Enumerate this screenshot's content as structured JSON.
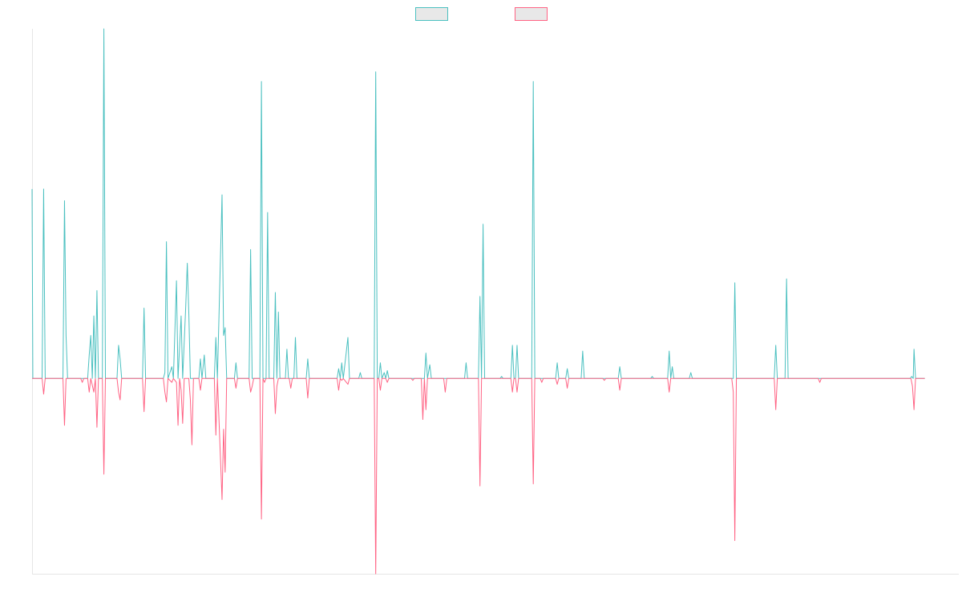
{
  "chart_data": {
    "type": "line",
    "title": "",
    "xlabel": "",
    "ylabel": "",
    "x_range": [
      0,
      1200
    ],
    "ylim": [
      -1.0,
      1.79
    ],
    "grid": false,
    "legend": {
      "placement": "top-center"
    },
    "series": [
      {
        "color": "#4bc0c0",
        "fill": "#e8e8e8",
        "values": [
          [
            0,
            0.97
          ],
          [
            1,
            0
          ],
          [
            13,
            0
          ],
          [
            15,
            0.97
          ],
          [
            17,
            0
          ],
          [
            40,
            0
          ],
          [
            42,
            0.91
          ],
          [
            44,
            0.22
          ],
          [
            46,
            0
          ],
          [
            72,
            0
          ],
          [
            74,
            0.12
          ],
          [
            76,
            0.22
          ],
          [
            78,
            0
          ],
          [
            80,
            0.32
          ],
          [
            82,
            0
          ],
          [
            84,
            0.45
          ],
          [
            86,
            0
          ],
          [
            91,
            0
          ],
          [
            93,
            1.79
          ],
          [
            95,
            0
          ],
          [
            110,
            0
          ],
          [
            112,
            0.17
          ],
          [
            114,
            0.1
          ],
          [
            116,
            0
          ],
          [
            143,
            0
          ],
          [
            145,
            0.36
          ],
          [
            147,
            0
          ],
          [
            170,
            0
          ],
          [
            172,
            0.03
          ],
          [
            174,
            0.7
          ],
          [
            176,
            0
          ],
          [
            181,
            0.06
          ],
          [
            183,
            0
          ],
          [
            187,
            0.5
          ],
          [
            189,
            0
          ],
          [
            193,
            0.32
          ],
          [
            195,
            0
          ],
          [
            199,
            0.37
          ],
          [
            201,
            0.59
          ],
          [
            203,
            0.33
          ],
          [
            205,
            0
          ],
          [
            216,
            0
          ],
          [
            218,
            0.1
          ],
          [
            220,
            0
          ],
          [
            223,
            0.12
          ],
          [
            225,
            0
          ],
          [
            236,
            0
          ],
          [
            238,
            0.21
          ],
          [
            240,
            0
          ],
          [
            246,
            0.94
          ],
          [
            248,
            0.22
          ],
          [
            250,
            0.26
          ],
          [
            252,
            0
          ],
          [
            262,
            0
          ],
          [
            264,
            0.08
          ],
          [
            266,
            0
          ],
          [
            281,
            0
          ],
          [
            283,
            0.66
          ],
          [
            285,
            0
          ],
          [
            295,
            0
          ],
          [
            297,
            1.52
          ],
          [
            299,
            0
          ],
          [
            303,
            0
          ],
          [
            305,
            0.85
          ],
          [
            307,
            0
          ],
          [
            313,
            0
          ],
          [
            315,
            0.44
          ],
          [
            317,
            0
          ],
          [
            319,
            0.34
          ],
          [
            321,
            0
          ],
          [
            328,
            0
          ],
          [
            330,
            0.15
          ],
          [
            332,
            0
          ],
          [
            339,
            0
          ],
          [
            341,
            0.21
          ],
          [
            343,
            0
          ],
          [
            355,
            0
          ],
          [
            357,
            0.1
          ],
          [
            359,
            0
          ],
          [
            395,
            0
          ],
          [
            397,
            0.05
          ],
          [
            399,
            0
          ],
          [
            401,
            0.08
          ],
          [
            403,
            0
          ],
          [
            409,
            0.21
          ],
          [
            411,
            0
          ],
          [
            423,
            0
          ],
          [
            425,
            0.03
          ],
          [
            427,
            0
          ],
          [
            443,
            0
          ],
          [
            445,
            1.57
          ],
          [
            447,
            0
          ],
          [
            449,
            0
          ],
          [
            451,
            0.08
          ],
          [
            453,
            0
          ],
          [
            456,
            0.03
          ],
          [
            458,
            0
          ],
          [
            460,
            0.04
          ],
          [
            462,
            0
          ],
          [
            508,
            0
          ],
          [
            510,
            0.13
          ],
          [
            512,
            0
          ],
          [
            515,
            0.07
          ],
          [
            517,
            0
          ],
          [
            560,
            0
          ],
          [
            562,
            0.08
          ],
          [
            564,
            0
          ],
          [
            578,
            0
          ],
          [
            580,
            0.42
          ],
          [
            582,
            0
          ],
          [
            584,
            0.79
          ],
          [
            586,
            0
          ],
          [
            606,
            0
          ],
          [
            608,
            0.01
          ],
          [
            610,
            0
          ],
          [
            620,
            0
          ],
          [
            622,
            0.17
          ],
          [
            624,
            0
          ],
          [
            626,
            0
          ],
          [
            628,
            0.17
          ],
          [
            630,
            0
          ],
          [
            647,
            0
          ],
          [
            649,
            1.52
          ],
          [
            651,
            0
          ],
          [
            678,
            0
          ],
          [
            680,
            0.08
          ],
          [
            682,
            0
          ],
          [
            691,
            0
          ],
          [
            693,
            0.05
          ],
          [
            695,
            0
          ],
          [
            711,
            0
          ],
          [
            713,
            0.14
          ],
          [
            715,
            0
          ],
          [
            759,
            0
          ],
          [
            761,
            0.06
          ],
          [
            763,
            0
          ],
          [
            801,
            0
          ],
          [
            803,
            0.01
          ],
          [
            805,
            0
          ],
          [
            823,
            0
          ],
          [
            825,
            0.14
          ],
          [
            827,
            0
          ],
          [
            829,
            0.06
          ],
          [
            831,
            0
          ],
          [
            851,
            0
          ],
          [
            853,
            0.03
          ],
          [
            855,
            0
          ],
          [
            908,
            0
          ],
          [
            910,
            0.49
          ],
          [
            912,
            0
          ],
          [
            961,
            0
          ],
          [
            963,
            0.17
          ],
          [
            965,
            0
          ],
          [
            975,
            0
          ],
          [
            977,
            0.51
          ],
          [
            979,
            0
          ],
          [
            1137,
            0
          ],
          [
            1139,
            0.01
          ],
          [
            1141,
            0
          ],
          [
            1142,
            0.15
          ],
          [
            1144,
            0
          ],
          [
            1156,
            0
          ]
        ]
      },
      {
        "color": "#ff6384",
        "fill": "#e8e8e8",
        "values": [
          [
            0,
            0
          ],
          [
            13,
            0
          ],
          [
            15,
            -0.08
          ],
          [
            17,
            0
          ],
          [
            40,
            0
          ],
          [
            42,
            -0.24
          ],
          [
            44,
            0
          ],
          [
            63,
            0
          ],
          [
            65,
            -0.02
          ],
          [
            67,
            0
          ],
          [
            72,
            0
          ],
          [
            74,
            -0.07
          ],
          [
            76,
            0
          ],
          [
            80,
            -0.07
          ],
          [
            82,
            0
          ],
          [
            84,
            -0.25
          ],
          [
            86,
            0
          ],
          [
            91,
            0
          ],
          [
            93,
            -0.49
          ],
          [
            95,
            0
          ],
          [
            110,
            0
          ],
          [
            112,
            -0.07
          ],
          [
            114,
            -0.11
          ],
          [
            116,
            0
          ],
          [
            143,
            0
          ],
          [
            145,
            -0.17
          ],
          [
            147,
            0
          ],
          [
            170,
            0
          ],
          [
            172,
            -0.07
          ],
          [
            174,
            -0.12
          ],
          [
            176,
            0
          ],
          [
            181,
            -0.02
          ],
          [
            183,
            0
          ],
          [
            187,
            -0.02
          ],
          [
            189,
            -0.24
          ],
          [
            191,
            0
          ],
          [
            193,
            -0.06
          ],
          [
            195,
            -0.23
          ],
          [
            197,
            0
          ],
          [
            203,
            0
          ],
          [
            205,
            -0.11
          ],
          [
            207,
            -0.34
          ],
          [
            209,
            0
          ],
          [
            216,
            0
          ],
          [
            218,
            -0.06
          ],
          [
            220,
            0
          ],
          [
            236,
            0
          ],
          [
            238,
            -0.29
          ],
          [
            240,
            0
          ],
          [
            246,
            -0.62
          ],
          [
            248,
            -0.26
          ],
          [
            250,
            -0.48
          ],
          [
            252,
            0
          ],
          [
            262,
            0
          ],
          [
            264,
            -0.05
          ],
          [
            266,
            0
          ],
          [
            281,
            0
          ],
          [
            283,
            -0.07
          ],
          [
            285,
            -0.04
          ],
          [
            287,
            0
          ],
          [
            295,
            0
          ],
          [
            297,
            -0.72
          ],
          [
            299,
            0
          ],
          [
            301,
            -0.02
          ],
          [
            303,
            0
          ],
          [
            313,
            0
          ],
          [
            315,
            -0.18
          ],
          [
            317,
            -0.04
          ],
          [
            319,
            0
          ],
          [
            333,
            0
          ],
          [
            335,
            -0.05
          ],
          [
            337,
            0
          ],
          [
            355,
            0
          ],
          [
            357,
            -0.1
          ],
          [
            359,
            0
          ],
          [
            395,
            0
          ],
          [
            397,
            -0.06
          ],
          [
            399,
            0
          ],
          [
            401,
            -0.01
          ],
          [
            403,
            0
          ],
          [
            409,
            -0.03
          ],
          [
            411,
            0
          ],
          [
            443,
            0
          ],
          [
            445,
            -1.0
          ],
          [
            447,
            0
          ],
          [
            449,
            0
          ],
          [
            451,
            -0.06
          ],
          [
            453,
            0
          ],
          [
            458,
            0
          ],
          [
            460,
            -0.02
          ],
          [
            462,
            0
          ],
          [
            491,
            0
          ],
          [
            493,
            -0.01
          ],
          [
            495,
            0
          ],
          [
            504,
            0
          ],
          [
            506,
            -0.21
          ],
          [
            508,
            0
          ],
          [
            510,
            -0.16
          ],
          [
            512,
            0
          ],
          [
            533,
            0
          ],
          [
            535,
            -0.07
          ],
          [
            537,
            0
          ],
          [
            578,
            0
          ],
          [
            580,
            -0.55
          ],
          [
            582,
            0
          ],
          [
            620,
            0
          ],
          [
            622,
            -0.07
          ],
          [
            624,
            0
          ],
          [
            626,
            0
          ],
          [
            628,
            -0.07
          ],
          [
            630,
            0
          ],
          [
            647,
            0
          ],
          [
            649,
            -0.54
          ],
          [
            651,
            0
          ],
          [
            658,
            0
          ],
          [
            660,
            -0.02
          ],
          [
            662,
            0
          ],
          [
            678,
            0
          ],
          [
            680,
            -0.03
          ],
          [
            682,
            0
          ],
          [
            691,
            0
          ],
          [
            693,
            -0.05
          ],
          [
            695,
            0
          ],
          [
            739,
            0
          ],
          [
            741,
            -0.01
          ],
          [
            743,
            0
          ],
          [
            759,
            0
          ],
          [
            761,
            -0.06
          ],
          [
            763,
            0
          ],
          [
            823,
            0
          ],
          [
            825,
            -0.07
          ],
          [
            827,
            0
          ],
          [
            906,
            0
          ],
          [
            908,
            -0.07
          ],
          [
            910,
            -0.83
          ],
          [
            912,
            0
          ],
          [
            961,
            0
          ],
          [
            963,
            -0.16
          ],
          [
            965,
            0
          ],
          [
            1018,
            0
          ],
          [
            1020,
            -0.02
          ],
          [
            1022,
            0
          ],
          [
            1138,
            0
          ],
          [
            1140,
            -0.04
          ],
          [
            1142,
            -0.16
          ],
          [
            1144,
            0
          ],
          [
            1156,
            0
          ]
        ]
      }
    ]
  }
}
